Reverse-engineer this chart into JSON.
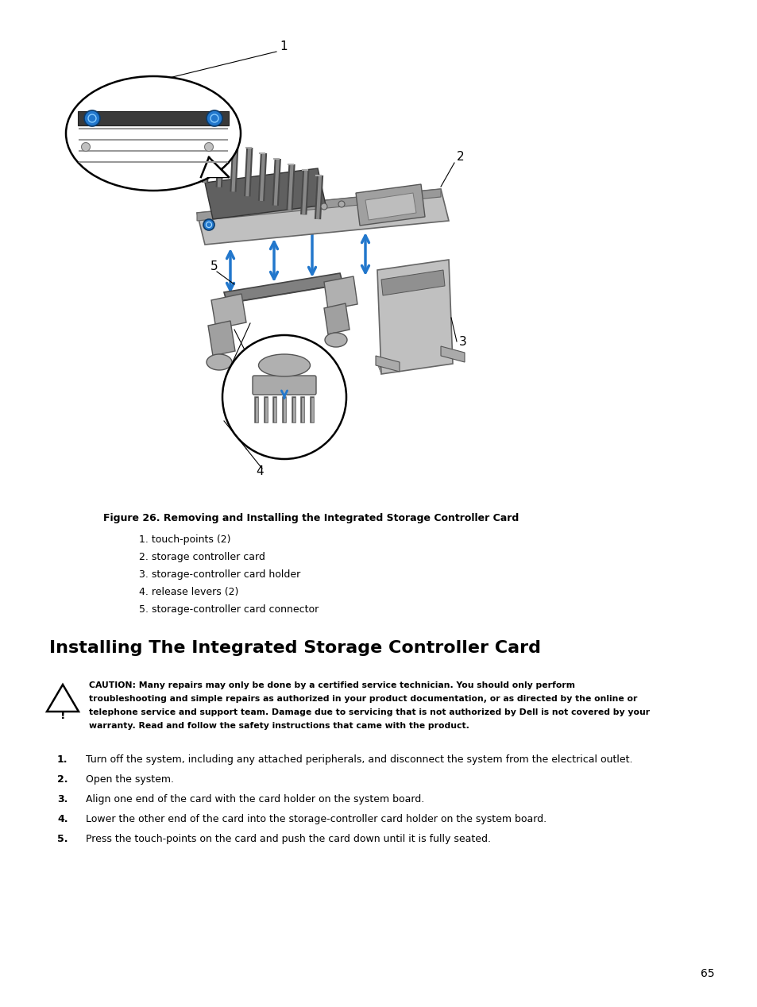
{
  "bg_color": "#ffffff",
  "figure_caption": "Figure 26. Removing and Installing the Integrated Storage Controller Card",
  "legend_items": [
    "1. touch-points (2)",
    "2. storage controller card",
    "3. storage-controller card holder",
    "4. release levers (2)",
    "5. storage-controller card connector"
  ],
  "section_title": "Installing The Integrated Storage Controller Card",
  "caution_lines": [
    "CAUTION: Many repairs may only be done by a certified service technician. You should only perform",
    "troubleshooting and simple repairs as authorized in your product documentation, or as directed by the online or",
    "telephone service and support team. Damage due to servicing that is not authorized by Dell is not covered by your",
    "warranty. Read and follow the safety instructions that came with the product."
  ],
  "steps": [
    "Turn off the system, including any attached peripherals, and disconnect the system from the electrical outlet.",
    "Open the system.",
    "Align one end of the card with the card holder on the system board.",
    "Lower the other end of the card into the storage-controller card holder on the system board.",
    "Press the touch-points on the card and push the card down until it is fully seated."
  ],
  "step_nums": [
    "1.",
    "2.",
    "3.",
    "4.",
    "5."
  ],
  "page_number": "65",
  "arrow_color": "#2277cc",
  "dark_gray": "#3c3c3c",
  "mid_gray": "#888888",
  "light_gray": "#c0c0c0",
  "card_gray": "#b8b8b8"
}
